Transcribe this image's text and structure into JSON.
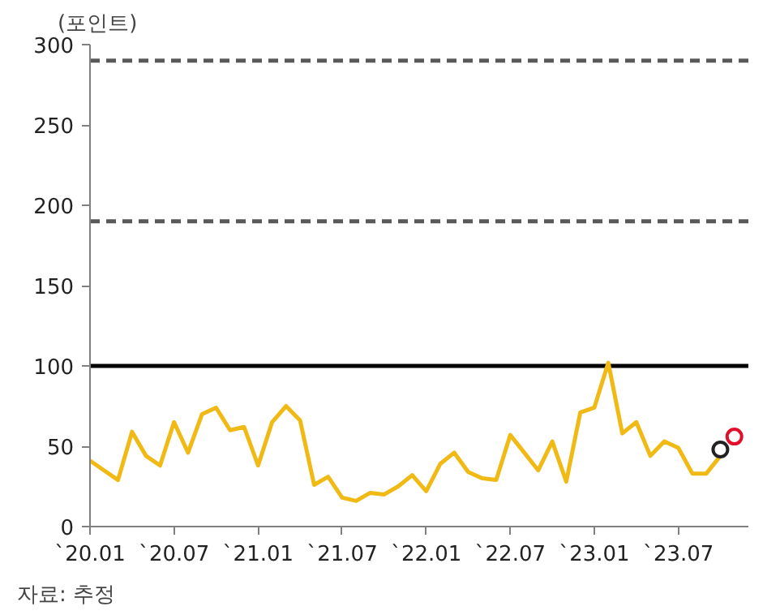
{
  "chart_data": {
    "type": "line",
    "ylabel": "(포인트)",
    "x": [
      "2020-01",
      "2020-02",
      "2020-03",
      "2020-04",
      "2020-05",
      "2020-06",
      "2020-07",
      "2020-08",
      "2020-09",
      "2020-10",
      "2020-11",
      "2020-12",
      "2021-01",
      "2021-02",
      "2021-03",
      "2021-04",
      "2021-05",
      "2021-06",
      "2021-07",
      "2021-08",
      "2021-09",
      "2021-10",
      "2021-11",
      "2021-12",
      "2022-01",
      "2022-02",
      "2022-03",
      "2022-04",
      "2022-05",
      "2022-06",
      "2022-07",
      "2022-08",
      "2022-09",
      "2022-10",
      "2022-11",
      "2022-12",
      "2023-01",
      "2023-02",
      "2023-03",
      "2023-04",
      "2023-05",
      "2023-06",
      "2023-07",
      "2023-08",
      "2023-09",
      "2023-10"
    ],
    "series": [
      {
        "color": "#f0b914",
        "values": [
          41,
          35,
          29,
          59,
          44,
          38,
          65,
          46,
          70,
          74,
          60,
          62,
          38,
          65,
          75,
          66,
          26,
          31,
          18,
          16,
          21,
          20,
          25,
          32,
          22,
          39,
          46,
          34,
          30,
          29,
          57,
          46,
          35,
          53,
          28,
          71,
          74,
          102,
          58,
          65,
          44,
          53,
          49,
          33,
          33,
          44
        ]
      },
      {
        "type": "scatter",
        "marker": "circle",
        "color": "#222222",
        "x": [
          "2023-10"
        ],
        "values": [
          48
        ]
      },
      {
        "type": "scatter",
        "marker": "circle",
        "color": "#e0102a",
        "x": [
          "2023-11"
        ],
        "values": [
          56
        ]
      }
    ],
    "xlim": [
      "2020-01",
      "2023-12"
    ],
    "xticks": [
      {
        "value": "2020-01",
        "label": "`20.01"
      },
      {
        "value": "2020-07",
        "label": "`20.07"
      },
      {
        "value": "2021-01",
        "label": "`21.01"
      },
      {
        "value": "2021-07",
        "label": "`21.07"
      },
      {
        "value": "2022-01",
        "label": "`22.01"
      },
      {
        "value": "2022-07",
        "label": "`22.07"
      },
      {
        "value": "2023-01",
        "label": "`23.01"
      },
      {
        "value": "2023-07",
        "label": "`23.07"
      }
    ],
    "ylim": [
      0,
      300
    ],
    "yticks": [
      0,
      50,
      100,
      150,
      200,
      250,
      300
    ],
    "ref_lines": [
      {
        "axis": "y",
        "value": 100,
        "color": "#000000",
        "line_style": "solid"
      },
      {
        "axis": "y",
        "value": 190,
        "color": "#595959",
        "line_style": "dashed"
      },
      {
        "axis": "y",
        "value": 290,
        "color": "#595959",
        "line_style": "dashed"
      }
    ],
    "grid": false,
    "annotations": [
      "자료: 추정"
    ]
  }
}
